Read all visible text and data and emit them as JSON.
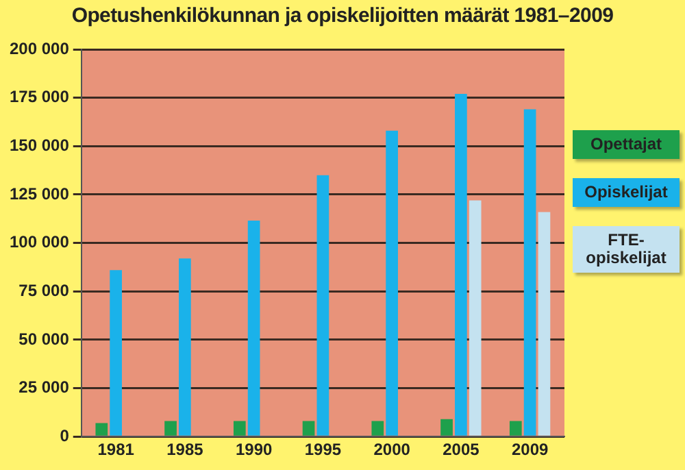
{
  "chart_data": {
    "type": "bar",
    "title": "Opetushenkilökunnan ja opiskelijoitten määrät 1981–2009",
    "categories": [
      "1981",
      "1985",
      "1990",
      "1995",
      "2000",
      "2005",
      "2009"
    ],
    "series": [
      {
        "name": "Opettajat",
        "color": "#1ea04c",
        "values": [
          7000,
          8000,
          8000,
          8000,
          8000,
          9000,
          8000
        ]
      },
      {
        "name": "Opiskelijat",
        "color": "#1ab2ea",
        "values": [
          86000,
          92000,
          111500,
          135000,
          158000,
          177000,
          169000
        ]
      },
      {
        "name": "FTE-opiskelijat",
        "color": "#c4e2f0",
        "values": [
          null,
          null,
          null,
          null,
          null,
          122000,
          116000
        ]
      }
    ],
    "ylim": [
      0,
      200000
    ],
    "yticks": [
      {
        "value": 0,
        "label": "0"
      },
      {
        "value": 25000,
        "label": "25 000"
      },
      {
        "value": 50000,
        "label": "50 000"
      },
      {
        "value": 75000,
        "label": "75 000"
      },
      {
        "value": 100000,
        "label": "100 000"
      },
      {
        "value": 125000,
        "label": "125 000"
      },
      {
        "value": 150000,
        "label": "150 000"
      },
      {
        "value": 175000,
        "label": "175 000"
      },
      {
        "value": 200000,
        "label": "200 000"
      }
    ],
    "grid": "y",
    "legend": "right"
  }
}
